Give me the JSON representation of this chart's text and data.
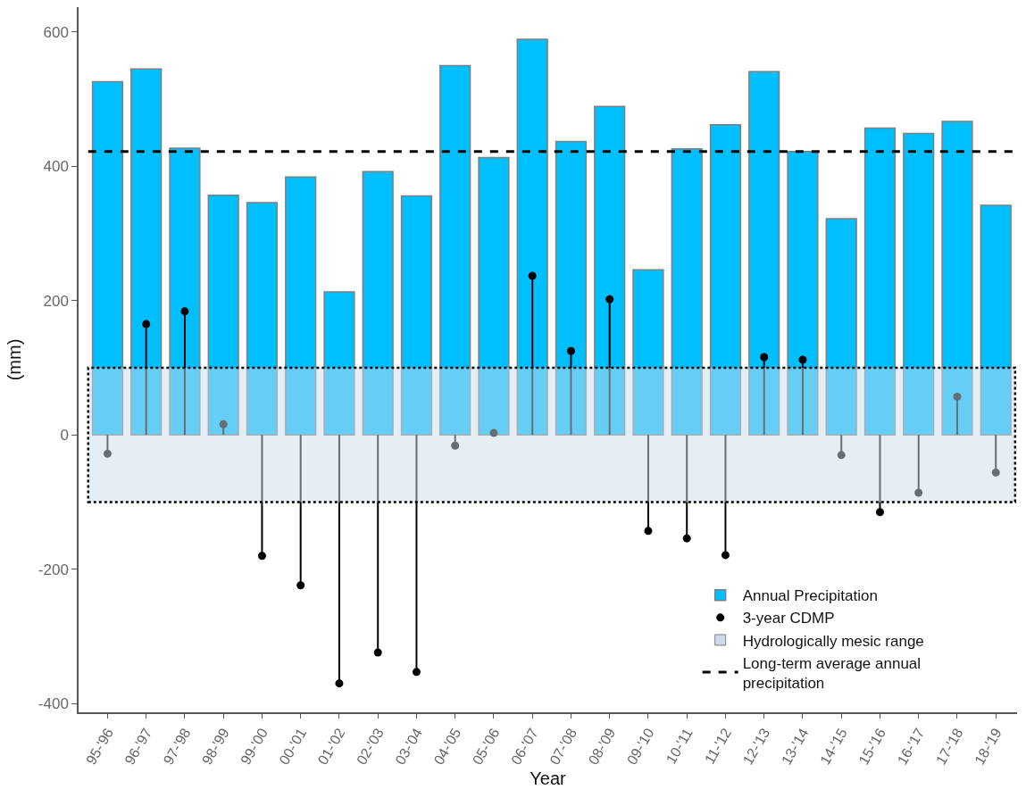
{
  "chart_data": {
    "type": "bar",
    "xlabel": "Year",
    "ylabel": "(mm)",
    "categories": [
      "95-'96",
      "96-'97",
      "97-'98",
      "98-'99",
      "99-'00",
      "00-'01",
      "01-'02",
      "02-'03",
      "03-'04",
      "04-'05",
      "05-'06",
      "06-'07",
      "07-'08",
      "08-'09",
      "09-'10",
      "10-'11",
      "11-'12",
      "12-'13",
      "13-'14",
      "14-'15",
      "15-'16",
      "16-'17",
      "17-'18",
      "18-'19"
    ],
    "series": [
      {
        "name": "Annual Precipitation",
        "type": "bar",
        "color": "#00bfff",
        "values": [
          526,
          545,
          427,
          357,
          346,
          384,
          213,
          392,
          356,
          550,
          413,
          589,
          437,
          489,
          246,
          426,
          462,
          541,
          422,
          322,
          457,
          449,
          467,
          342
        ]
      },
      {
        "name": "3-year CDMP",
        "type": "lollipop",
        "color": "#000000",
        "values": [
          -28,
          165,
          184,
          16,
          -180,
          -224,
          -370,
          -324,
          -353,
          -16,
          3,
          237,
          125,
          202,
          -143,
          -154,
          -179,
          116,
          112,
          -30,
          -115,
          -86,
          57,
          -56
        ]
      }
    ],
    "ref_lines": [
      {
        "axis": "y",
        "value": 422,
        "label": "Long-term average annual\nprecipitation",
        "color": "#000000",
        "line_style": "dashed"
      }
    ],
    "bands": [
      {
        "axis": "y",
        "from": -100,
        "to": 100,
        "label": "Hydrologically mesic range",
        "color": "#cbdbeb"
      }
    ],
    "ylim": [
      -413,
      637
    ],
    "yticks": [
      -400,
      -200,
      0,
      200,
      400,
      600
    ],
    "grid": false,
    "legend": "bottom right",
    "marker": "circle"
  }
}
